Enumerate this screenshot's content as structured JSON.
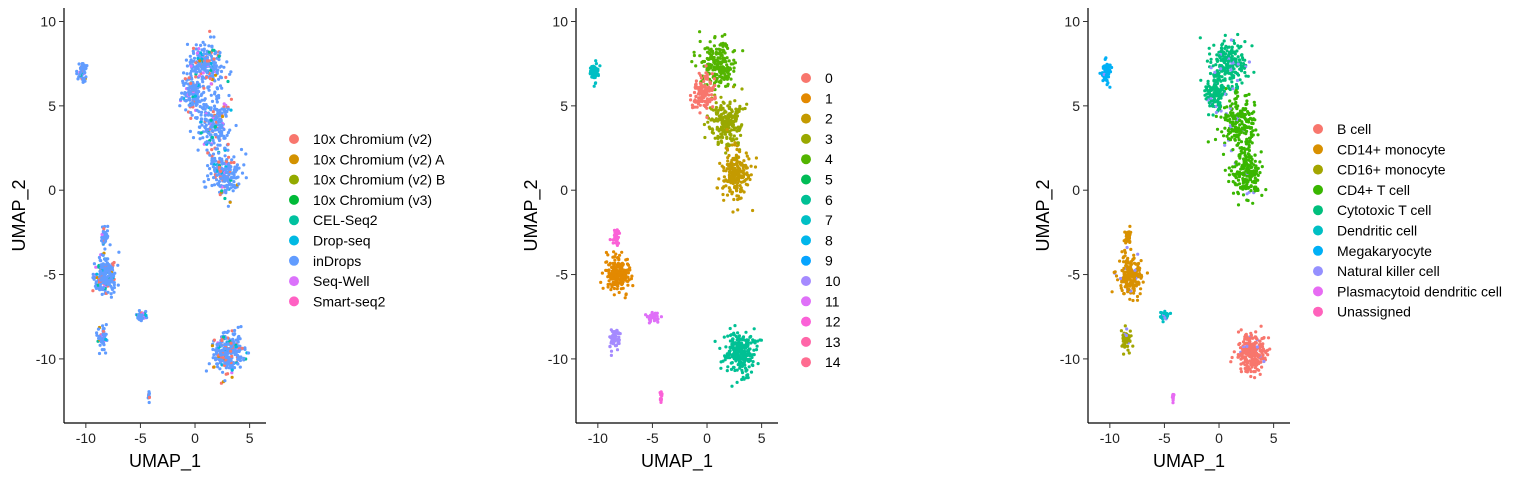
{
  "chart_data": [
    {
      "id": "panel-dataset",
      "type": "scatter",
      "xlabel": "UMAP_1",
      "ylabel": "UMAP_2",
      "xlim": [
        -12,
        6.5
      ],
      "ylim": [
        -13.8,
        10.8
      ],
      "xticks": [
        -10,
        -5,
        0,
        5
      ],
      "yticks": [
        10,
        5,
        0,
        -5,
        -10
      ],
      "grid": false,
      "legend_position": "right",
      "legend": [
        {
          "label": "10x Chromium (v2)",
          "color": "#F8766D"
        },
        {
          "label": "10x Chromium (v2) A",
          "color": "#D39200"
        },
        {
          "label": "10x Chromium (v2) B",
          "color": "#93AA00"
        },
        {
          "label": "10x Chromium (v3)",
          "color": "#00BA38"
        },
        {
          "label": "CEL-Seq2",
          "color": "#00C19F"
        },
        {
          "label": "Drop-seq",
          "color": "#00B9E3"
        },
        {
          "label": "inDrops",
          "color": "#619CFF"
        },
        {
          "label": "Seq-Well",
          "color": "#DB72FB"
        },
        {
          "label": "Smart-seq2",
          "color": "#FF61C3"
        }
      ]
    },
    {
      "id": "panel-cluster",
      "type": "scatter",
      "xlabel": "UMAP_1",
      "ylabel": "UMAP_2",
      "xlim": [
        -12,
        6.5
      ],
      "ylim": [
        -13.8,
        10.8
      ],
      "xticks": [
        -10,
        -5,
        0,
        5
      ],
      "yticks": [
        10,
        5,
        0,
        -5,
        -10
      ],
      "grid": false,
      "legend_position": "right",
      "legend": [
        {
          "label": "0",
          "color": "#F8766D"
        },
        {
          "label": "1",
          "color": "#E38900"
        },
        {
          "label": "2",
          "color": "#C49A00"
        },
        {
          "label": "3",
          "color": "#99A800"
        },
        {
          "label": "4",
          "color": "#53B400"
        },
        {
          "label": "5",
          "color": "#00BC56"
        },
        {
          "label": "6",
          "color": "#00C094"
        },
        {
          "label": "7",
          "color": "#00BFC4"
        },
        {
          "label": "8",
          "color": "#00B6EB"
        },
        {
          "label": "9",
          "color": "#06A4FF"
        },
        {
          "label": "10",
          "color": "#A58AFF"
        },
        {
          "label": "11",
          "color": "#DF70F8"
        },
        {
          "label": "12",
          "color": "#FB61D7"
        },
        {
          "label": "13",
          "color": "#FF66A8"
        },
        {
          "label": "14",
          "color": "#FF6C91"
        }
      ]
    },
    {
      "id": "panel-celltype",
      "type": "scatter",
      "xlabel": "UMAP_1",
      "ylabel": "UMAP_2",
      "xlim": [
        -12,
        6.5
      ],
      "ylim": [
        -13.8,
        10.8
      ],
      "xticks": [
        -10,
        -5,
        0,
        5
      ],
      "yticks": [
        10,
        5,
        0,
        -5,
        -10
      ],
      "grid": false,
      "legend_position": "right",
      "legend": [
        {
          "label": "B cell",
          "color": "#F8766D"
        },
        {
          "label": "CD14+ monocyte",
          "color": "#D89000"
        },
        {
          "label": "CD16+ monocyte",
          "color": "#A3A500"
        },
        {
          "label": "CD4+ T cell",
          "color": "#39B600"
        },
        {
          "label": "Cytotoxic T cell",
          "color": "#00BF7D"
        },
        {
          "label": "Dendritic cell",
          "color": "#00BFC4"
        },
        {
          "label": "Megakaryocyte",
          "color": "#00B0F6"
        },
        {
          "label": "Natural killer cell",
          "color": "#9590FF"
        },
        {
          "label": "Plasmacytoid dendritic cell",
          "color": "#E76BF3"
        },
        {
          "label": "Unassigned",
          "color": "#FF62BC"
        }
      ]
    }
  ]
}
